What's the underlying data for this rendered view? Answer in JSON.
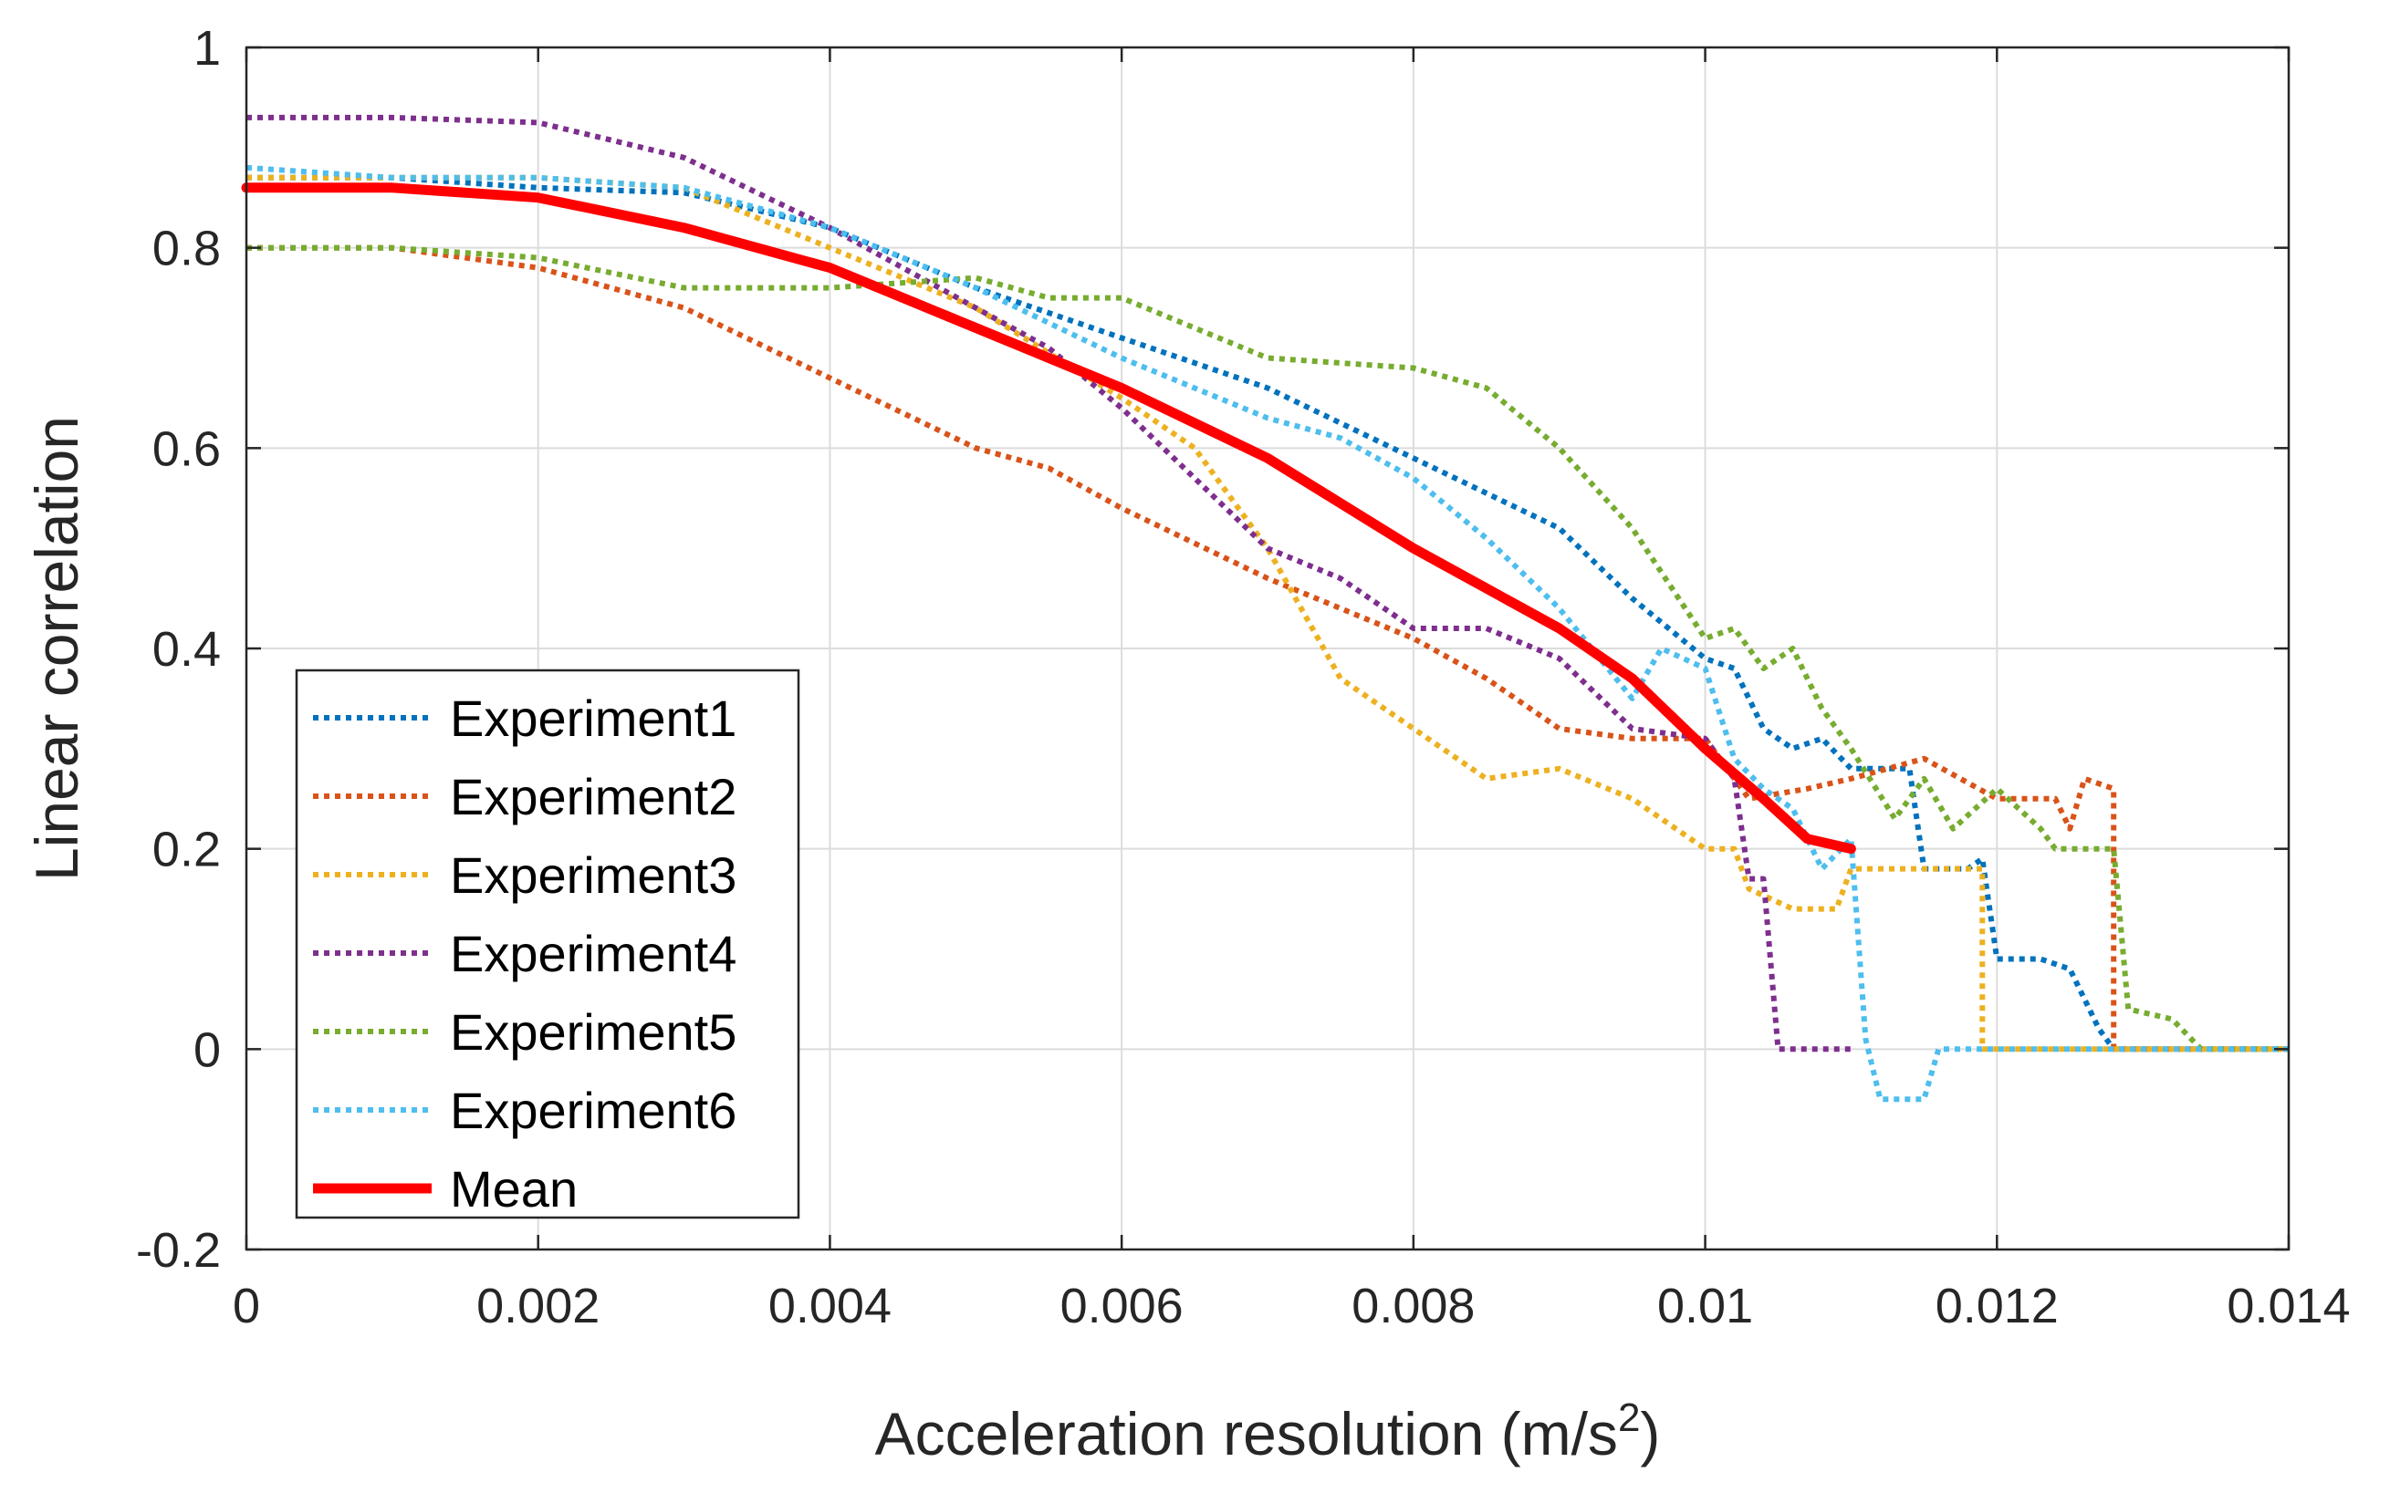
{
  "chart_data": {
    "type": "line",
    "title": "",
    "xlabel": "Acceleration resolution (m/s",
    "xlabel_sup": "2",
    "xlabel_close": ")",
    "ylabel": "Linear correlation",
    "xlim": [
      0,
      0.014
    ],
    "ylim": [
      -0.2,
      1
    ],
    "grid": true,
    "legend_position": "bottom-left",
    "x_ticks": [
      0,
      0.002,
      0.004,
      0.006,
      0.008,
      0.01,
      0.012,
      0.014
    ],
    "x_tick_labels": [
      "0",
      "0.002",
      "0.004",
      "0.006",
      "0.008",
      "0.01",
      "0.012",
      "0.014"
    ],
    "y_ticks": [
      -0.2,
      0,
      0.2,
      0.4,
      0.6,
      0.8,
      1
    ],
    "y_tick_labels": [
      "-0.2",
      "0",
      "0.2",
      "0.4",
      "0.6",
      "0.8",
      "1"
    ],
    "series": [
      {
        "name": "Experiment1",
        "color": "#0072BD",
        "style": "dotted",
        "points": [
          [
            0,
            0.87
          ],
          [
            0.001,
            0.87
          ],
          [
            0.002,
            0.86
          ],
          [
            0.003,
            0.855
          ],
          [
            0.004,
            0.82
          ],
          [
            0.005,
            0.76
          ],
          [
            0.006,
            0.71
          ],
          [
            0.007,
            0.66
          ],
          [
            0.008,
            0.59
          ],
          [
            0.009,
            0.52
          ],
          [
            0.0095,
            0.45
          ],
          [
            0.01,
            0.39
          ],
          [
            0.0102,
            0.38
          ],
          [
            0.0104,
            0.32
          ],
          [
            0.0106,
            0.3
          ],
          [
            0.0108,
            0.31
          ],
          [
            0.011,
            0.28
          ],
          [
            0.0114,
            0.28
          ],
          [
            0.0115,
            0.18
          ],
          [
            0.0118,
            0.18
          ],
          [
            0.0119,
            0.19
          ],
          [
            0.012,
            0.09
          ],
          [
            0.0123,
            0.09
          ],
          [
            0.0125,
            0.08
          ],
          [
            0.0127,
            0.02
          ],
          [
            0.0128,
            0
          ],
          [
            0.014,
            0
          ]
        ]
      },
      {
        "name": "Experiment2",
        "color": "#D95319",
        "style": "dotted",
        "points": [
          [
            0,
            0.8
          ],
          [
            0.001,
            0.8
          ],
          [
            0.002,
            0.78
          ],
          [
            0.003,
            0.74
          ],
          [
            0.004,
            0.67
          ],
          [
            0.005,
            0.6
          ],
          [
            0.0055,
            0.58
          ],
          [
            0.006,
            0.54
          ],
          [
            0.007,
            0.47
          ],
          [
            0.008,
            0.41
          ],
          [
            0.0085,
            0.37
          ],
          [
            0.009,
            0.32
          ],
          [
            0.0095,
            0.31
          ],
          [
            0.01,
            0.31
          ],
          [
            0.0103,
            0.25
          ],
          [
            0.0107,
            0.26
          ],
          [
            0.011,
            0.27
          ],
          [
            0.0115,
            0.29
          ],
          [
            0.012,
            0.25
          ],
          [
            0.0124,
            0.25
          ],
          [
            0.0125,
            0.22
          ],
          [
            0.0126,
            0.27
          ],
          [
            0.0128,
            0.26
          ],
          [
            0.0128,
            0
          ],
          [
            0.014,
            0
          ]
        ]
      },
      {
        "name": "Experiment3",
        "color": "#EDB120",
        "style": "dotted",
        "points": [
          [
            0,
            0.87
          ],
          [
            0.001,
            0.87
          ],
          [
            0.002,
            0.87
          ],
          [
            0.003,
            0.86
          ],
          [
            0.004,
            0.8
          ],
          [
            0.005,
            0.74
          ],
          [
            0.006,
            0.65
          ],
          [
            0.0065,
            0.6
          ],
          [
            0.007,
            0.5
          ],
          [
            0.0075,
            0.37
          ],
          [
            0.008,
            0.32
          ],
          [
            0.0085,
            0.27
          ],
          [
            0.009,
            0.28
          ],
          [
            0.0095,
            0.25
          ],
          [
            0.01,
            0.2
          ],
          [
            0.0102,
            0.2
          ],
          [
            0.0103,
            0.16
          ],
          [
            0.0106,
            0.14
          ],
          [
            0.0109,
            0.14
          ],
          [
            0.011,
            0.18
          ],
          [
            0.0118,
            0.18
          ],
          [
            0.0119,
            0.18
          ],
          [
            0.0119,
            0
          ],
          [
            0.014,
            0
          ]
        ]
      },
      {
        "name": "Experiment4",
        "color": "#7E2F8E",
        "style": "dotted",
        "points": [
          [
            0,
            0.93
          ],
          [
            0.001,
            0.93
          ],
          [
            0.002,
            0.925
          ],
          [
            0.003,
            0.89
          ],
          [
            0.004,
            0.82
          ],
          [
            0.005,
            0.74
          ],
          [
            0.0055,
            0.7
          ],
          [
            0.006,
            0.64
          ],
          [
            0.0065,
            0.57
          ],
          [
            0.007,
            0.5
          ],
          [
            0.0075,
            0.47
          ],
          [
            0.008,
            0.42
          ],
          [
            0.0085,
            0.42
          ],
          [
            0.009,
            0.39
          ],
          [
            0.0095,
            0.32
          ],
          [
            0.01,
            0.31
          ],
          [
            0.0102,
            0.27
          ],
          [
            0.0103,
            0.17
          ],
          [
            0.0104,
            0.17
          ],
          [
            0.0105,
            0
          ],
          [
            0.011,
            0
          ]
        ]
      },
      {
        "name": "Experiment5",
        "color": "#77AC30",
        "style": "dotted",
        "points": [
          [
            0,
            0.8
          ],
          [
            0.001,
            0.8
          ],
          [
            0.002,
            0.79
          ],
          [
            0.003,
            0.76
          ],
          [
            0.004,
            0.76
          ],
          [
            0.005,
            0.77
          ],
          [
            0.0055,
            0.75
          ],
          [
            0.006,
            0.75
          ],
          [
            0.007,
            0.69
          ],
          [
            0.008,
            0.68
          ],
          [
            0.0085,
            0.66
          ],
          [
            0.009,
            0.6
          ],
          [
            0.0095,
            0.52
          ],
          [
            0.01,
            0.41
          ],
          [
            0.0102,
            0.42
          ],
          [
            0.0104,
            0.38
          ],
          [
            0.0106,
            0.4
          ],
          [
            0.0108,
            0.34
          ],
          [
            0.011,
            0.3
          ],
          [
            0.0113,
            0.23
          ],
          [
            0.0115,
            0.27
          ],
          [
            0.0117,
            0.22
          ],
          [
            0.012,
            0.26
          ],
          [
            0.0123,
            0.22
          ],
          [
            0.0124,
            0.2
          ],
          [
            0.0128,
            0.2
          ],
          [
            0.0129,
            0.04
          ],
          [
            0.0132,
            0.03
          ],
          [
            0.0134,
            0
          ],
          [
            0.014,
            0
          ]
        ]
      },
      {
        "name": "Experiment6",
        "color": "#4DBEEE",
        "style": "dotted",
        "points": [
          [
            0,
            0.88
          ],
          [
            0.001,
            0.87
          ],
          [
            0.002,
            0.87
          ],
          [
            0.003,
            0.86
          ],
          [
            0.004,
            0.82
          ],
          [
            0.005,
            0.76
          ],
          [
            0.006,
            0.69
          ],
          [
            0.007,
            0.63
          ],
          [
            0.0075,
            0.61
          ],
          [
            0.008,
            0.57
          ],
          [
            0.0085,
            0.51
          ],
          [
            0.009,
            0.44
          ],
          [
            0.0095,
            0.35
          ],
          [
            0.0097,
            0.4
          ],
          [
            0.01,
            0.38
          ],
          [
            0.0102,
            0.29
          ],
          [
            0.0104,
            0.26
          ],
          [
            0.0106,
            0.24
          ],
          [
            0.0108,
            0.18
          ],
          [
            0.011,
            0.21
          ],
          [
            0.0111,
            0.01
          ],
          [
            0.0112,
            -0.05
          ],
          [
            0.0115,
            -0.05
          ],
          [
            0.0116,
            0
          ],
          [
            0.014,
            0
          ]
        ]
      }
    ],
    "mean": {
      "name": "Mean",
      "color": "#FF0000",
      "style": "solid",
      "points": [
        [
          0,
          0.86
        ],
        [
          0.001,
          0.86
        ],
        [
          0.002,
          0.85
        ],
        [
          0.003,
          0.82
        ],
        [
          0.004,
          0.78
        ],
        [
          0.005,
          0.72
        ],
        [
          0.006,
          0.66
        ],
        [
          0.007,
          0.59
        ],
        [
          0.008,
          0.5
        ],
        [
          0.0085,
          0.46
        ],
        [
          0.009,
          0.42
        ],
        [
          0.0095,
          0.37
        ],
        [
          0.01,
          0.3
        ],
        [
          0.0104,
          0.25
        ],
        [
          0.0107,
          0.21
        ],
        [
          0.011,
          0.2
        ]
      ]
    }
  }
}
